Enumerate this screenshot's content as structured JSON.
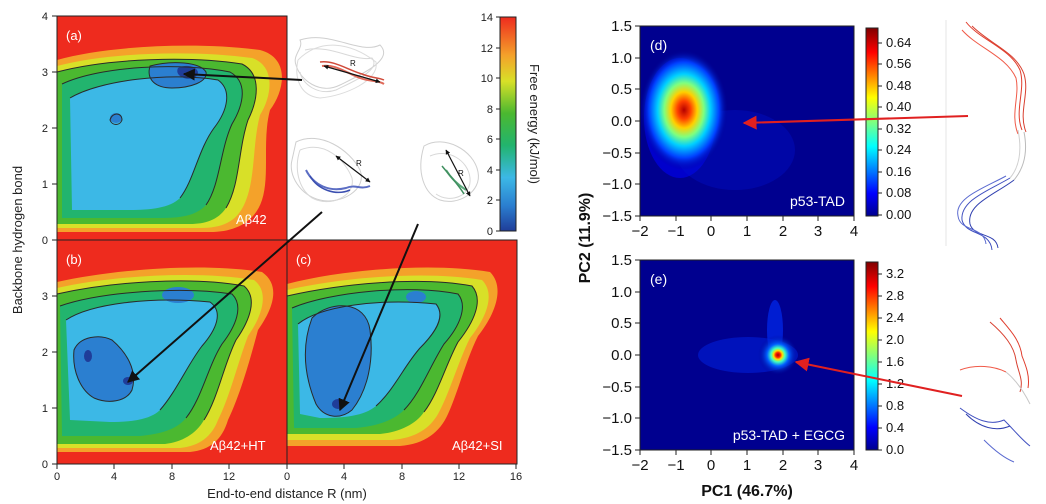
{
  "chart_data": [
    {
      "type": "heatmap",
      "panel": "(a)",
      "annotation": "Aβ42",
      "xlim": [
        0,
        16
      ],
      "ylim": [
        0,
        4
      ],
      "xticks": [
        "0",
        "4",
        "8",
        "12",
        "16"
      ],
      "yticks": [
        "0",
        "1",
        "2",
        "3",
        "4"
      ],
      "xlabel": "End-to-end distance R (nm)",
      "ylabel": "Backbone hydrogen bond",
      "minima": [
        {
          "x": 9.0,
          "y": 3.0
        },
        {
          "x": 2.2,
          "y": 2.2
        }
      ],
      "arrow_label": "R"
    },
    {
      "type": "heatmap",
      "panel": "(b)",
      "annotation": "Aβ42+HT",
      "xlim": [
        0,
        16
      ],
      "ylim": [
        0,
        4
      ],
      "xticks": [
        "0",
        "4",
        "8",
        "12"
      ],
      "yticks": [
        "0",
        "1",
        "2",
        "3"
      ],
      "minima": [
        {
          "x": 5.0,
          "y": 1.45
        },
        {
          "x": 9.0,
          "y": 2.8
        }
      ]
    },
    {
      "type": "heatmap",
      "panel": "(c)",
      "annotation": "Aβ42+SI",
      "xlim": [
        0,
        16
      ],
      "ylim": [
        0,
        4
      ],
      "xticks": [
        "0",
        "4",
        "8",
        "12",
        "16"
      ],
      "minima": [
        {
          "x": 3.3,
          "y": 0.85
        },
        {
          "x": 9.0,
          "y": 3.0
        }
      ]
    },
    {
      "type": "colorbar",
      "label": "Free energy (kJ/mol)",
      "ticks": [
        "0",
        "2",
        "4",
        "6",
        "8",
        "10",
        "12",
        "14"
      ],
      "range": [
        0,
        14
      ]
    },
    {
      "type": "heatmap",
      "panel": "(d)",
      "annotation": "p53-TAD",
      "xlim": [
        -2,
        4
      ],
      "ylim": [
        -1.5,
        1.5
      ],
      "xticks": [
        "−2",
        "−1",
        "0",
        "1",
        "2",
        "3",
        "4"
      ],
      "yticks": [
        "−1.5",
        "−1.0",
        "−0.5",
        "0.0",
        "0.5",
        "1.0",
        "1.5"
      ],
      "peak": {
        "x": -0.5,
        "y": 0.2
      },
      "colorbar_ticks": [
        "0.00",
        "0.08",
        "0.16",
        "0.24",
        "0.32",
        "0.40",
        "0.48",
        "0.56",
        "0.64"
      ],
      "colorbar_range": [
        0,
        0.7
      ]
    },
    {
      "type": "heatmap",
      "panel": "(e)",
      "annotation": "p53-TAD + EGCG",
      "xlim": [
        -2,
        4
      ],
      "ylim": [
        -1.5,
        1.5
      ],
      "xticks": [
        "−2",
        "−1",
        "0",
        "1",
        "2",
        "3",
        "4"
      ],
      "yticks": [
        "−1.5",
        "−1.0",
        "−0.5",
        "0.0",
        "0.5",
        "1.0",
        "1.5"
      ],
      "peak": {
        "x": 1.8,
        "y": 0.0
      },
      "colorbar_ticks": [
        "0.0",
        "0.4",
        "0.8",
        "1.2",
        "1.6",
        "2.0",
        "2.4",
        "2.8",
        "3.2"
      ],
      "colorbar_range": [
        0,
        3.4
      ],
      "xlabel": "PC1 (46.7%)",
      "ylabel": "PC2 (11.9%)"
    }
  ]
}
